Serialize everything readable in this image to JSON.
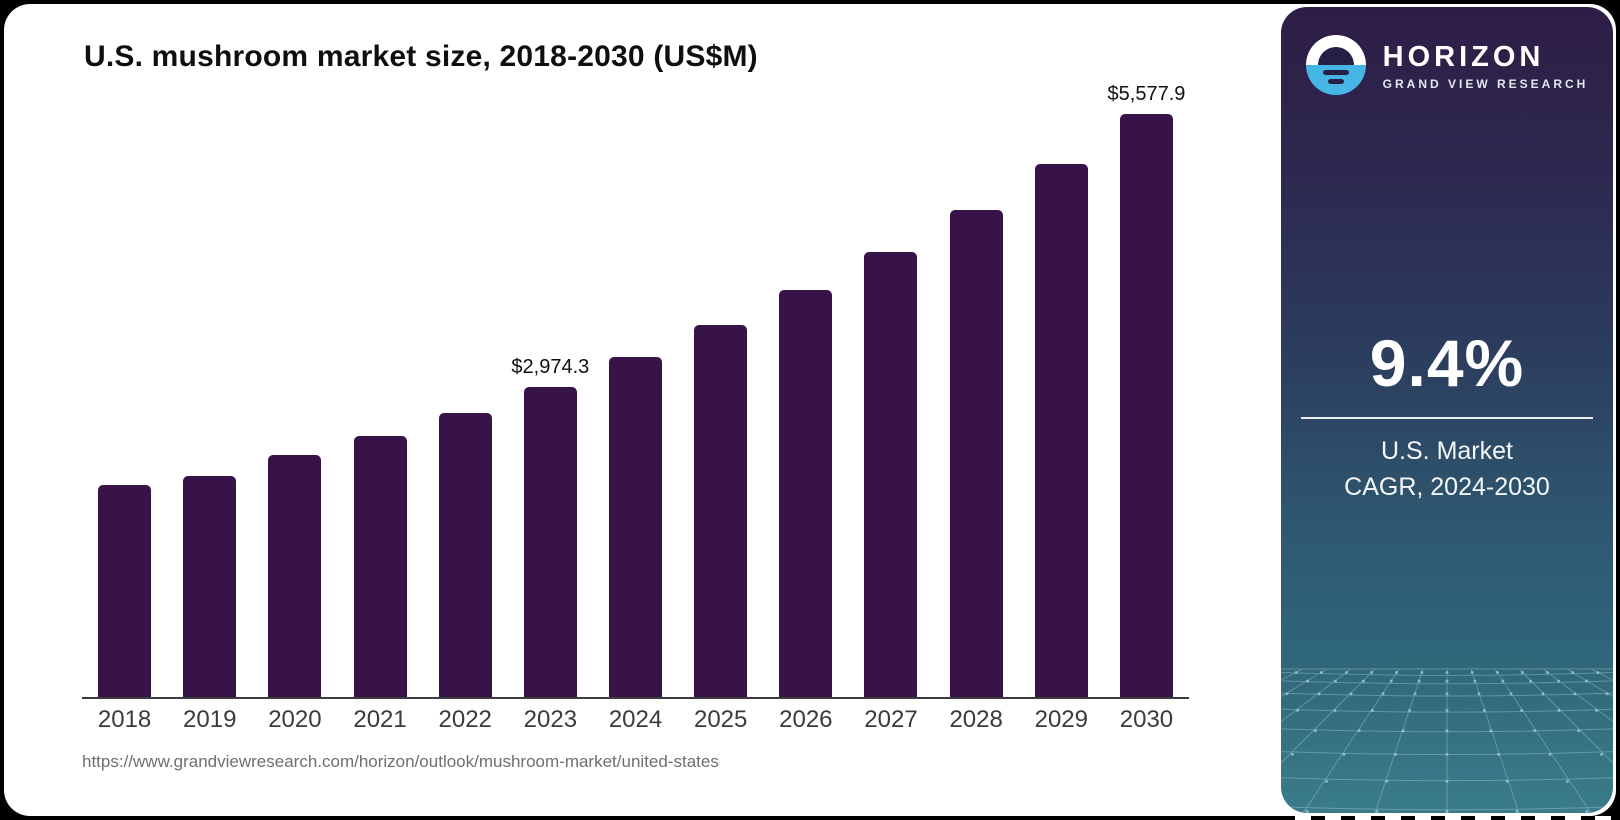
{
  "chart_data": {
    "type": "bar",
    "title": "U.S. mushroom market size, 2018-2030 (US$M)",
    "xlabel": "",
    "ylabel": "",
    "unit": "US$M",
    "categories": [
      "2018",
      "2019",
      "2020",
      "2021",
      "2022",
      "2023",
      "2024",
      "2025",
      "2026",
      "2027",
      "2028",
      "2029",
      "2030"
    ],
    "values": [
      2035,
      2120,
      2320,
      2505,
      2720,
      2974.3,
      3256,
      3561,
      3896,
      4262,
      4663,
      5101,
      5577.9
    ],
    "data_labels": [
      {
        "category": "2023",
        "text": "$2,974.3"
      },
      {
        "category": "2030",
        "text": "$5,577.9"
      }
    ],
    "bar_color": "#38134A",
    "axis_color": "#3c3c3c",
    "grid": false,
    "legend": false
  },
  "footer": {
    "url": "https://www.grandviewresearch.com/horizon/outlook/mushroom-market/united-states"
  },
  "sidebar": {
    "brand": {
      "name": "HORIZON",
      "subtitle": "GRAND VIEW RESEARCH",
      "logo_blue": "#45B5E6",
      "logo_dark": "#281F45"
    },
    "stat": {
      "value": "9.4%",
      "caption_line1": "U.S. Market",
      "caption_line2": "CAGR, 2024-2030"
    },
    "gradient_top": "#2E1E46",
    "gradient_bottom": "#3A7C8A"
  }
}
